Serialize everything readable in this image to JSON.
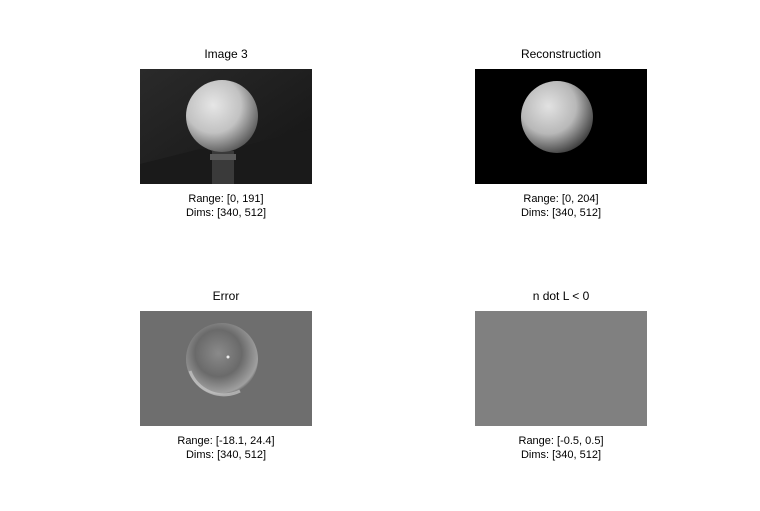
{
  "panels": [
    {
      "title": "Image 3",
      "range": "Range: [0, 191]",
      "dims": "Dims: [340, 512]"
    },
    {
      "title": "Reconstruction",
      "range": "Range: [0, 204]",
      "dims": "Dims: [340, 512]"
    },
    {
      "title": "Error",
      "range": "Range: [-18.1, 24.4]",
      "dims": "Dims: [340, 512]"
    },
    {
      "title": "n dot L < 0",
      "range": "Range: [-0.5, 0.5]",
      "dims": "Dims: [340, 512]"
    }
  ]
}
